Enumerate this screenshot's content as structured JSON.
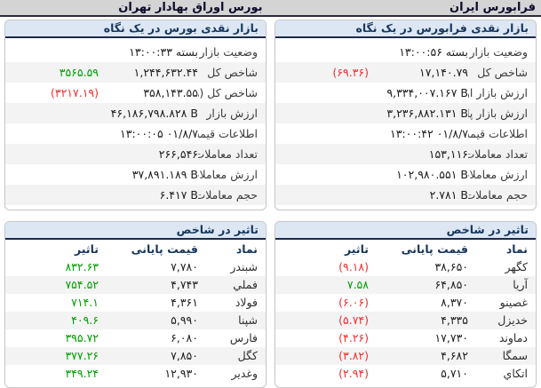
{
  "top_bar": {
    "bourse_title": "بورس اوراق بهادار تهران",
    "farabourse_title": "فرابورس ایران"
  },
  "colors": {
    "positive": "#00a000",
    "negative": "#f03030",
    "section_header_bg": "#dde7f4",
    "section_header_text": "#17365d",
    "topbar_bg": "#d4d4d4",
    "row_stripe": "#f3f3f3"
  },
  "bourse": {
    "glance_title": "بازار نقدی بورس در یک نگاه",
    "glance_rows": [
      {
        "label": "وضعیت بازار",
        "value": "بسته ۱۳:۰۰:۳۳"
      },
      {
        "label": "شاخص کل",
        "value": "۱,۲۴۴,۶۳۲.۴۴",
        "change": "۳۵۶۵.۵۹",
        "change_color": "green"
      },
      {
        "label": "شاخص کل (هم وزن)",
        "value": "۳۵۸,۱۴۳.۵۵",
        "change": "(۳۲۱۷.۱۹)",
        "change_color": "red"
      },
      {
        "label": "ارزش بازار",
        "value": "۴۶,۱۸۶,۷۹۸.۸۲۸ B"
      },
      {
        "label": "اطلاعات قیمت",
        "value": "۱۳:۰۰:۰۵ ۰۱/۸/۷"
      },
      {
        "label": "تعداد معاملات",
        "value": "۲۶۶,۵۴۶"
      },
      {
        "label": "ارزش معاملات",
        "value": "۳۷,۸۹۱.۱۸۹ B"
      },
      {
        "label": "حجم معاملات",
        "value": "۶.۴۱۷ B"
      }
    ],
    "impact_title": "تاثیر در شاخص",
    "table_headers": {
      "symbol": "نماد",
      "price": "قیمت پایانی",
      "impact": "تاثیر"
    },
    "impact_rows": [
      {
        "symbol": "شبندر",
        "price": "۷,۷۸۰",
        "impact": "۸۳۲.۶۳",
        "impact_color": "green"
      },
      {
        "symbol": "فملي",
        "price": "۴,۷۴۳",
        "impact": "۷۵۴.۵۲",
        "impact_color": "green"
      },
      {
        "symbol": "فولاد",
        "price": "۴,۳۶۱",
        "impact": "۷۱۴.۱",
        "impact_color": "green"
      },
      {
        "symbol": "شپنا",
        "price": "۵,۹۹۰",
        "impact": "۴۰۹.۶",
        "impact_color": "green"
      },
      {
        "symbol": "فارس",
        "price": "۶,۰۸۰",
        "impact": "۳۹۵.۷۲",
        "impact_color": "green"
      },
      {
        "symbol": "کگل",
        "price": "۷,۸۵۰",
        "impact": "۳۷۷.۲۶",
        "impact_color": "green"
      },
      {
        "symbol": "وغدیر",
        "price": "۱۲,۹۳۰",
        "impact": "۳۴۹.۲۴",
        "impact_color": "green"
      }
    ]
  },
  "farabourse": {
    "glance_title": "بازار نقدی فرابورس در یک نگاه",
    "glance_rows": [
      {
        "label": "وضعیت بازار",
        "value": "بسته ۱۳:۰۰:۵۶"
      },
      {
        "label": "شاخص کل",
        "value": "۱۷,۱۴۰.۷۹",
        "change": "(۶۹.۳۶)",
        "change_color": "red"
      },
      {
        "label": "ارزش بازار اول و دوم",
        "value": "۹,۳۳۴,۰۰۷.۱۶۷ B"
      },
      {
        "label": "ارزش بازار پایه",
        "value": "۳,۲۳۶,۸۸۲.۱۳۱ B"
      },
      {
        "label": "اطلاعات قیمت",
        "value": "۱۳:۰۰:۴۲ ۰۱/۸/۷"
      },
      {
        "label": "تعداد معاملات",
        "value": "۱۵۳,۱۱۶"
      },
      {
        "label": "ارزش معاملات",
        "value": "۱۰۲,۹۸۰.۵۵۱ B"
      },
      {
        "label": "حجم معاملات",
        "value": "۲.۷۸۱ B"
      }
    ],
    "impact_title": "تاثیر در شاخص",
    "table_headers": {
      "symbol": "نماد",
      "price": "قیمت پایانی",
      "impact": "تاثیر"
    },
    "impact_rows": [
      {
        "symbol": "کگهر",
        "price": "۳۸,۶۵۰",
        "impact": "(۹.۱۸)",
        "impact_color": "red"
      },
      {
        "symbol": "آریا",
        "price": "۶۴,۸۵۰",
        "impact": "۷.۵۸",
        "impact_color": "green"
      },
      {
        "symbol": "غصینو",
        "price": "۸,۳۷۰",
        "impact": "(۶.۰۶)",
        "impact_color": "red"
      },
      {
        "symbol": "خدیزل",
        "price": "۴,۳۳۵",
        "impact": "(۵.۷۴)",
        "impact_color": "red"
      },
      {
        "symbol": "دماوند",
        "price": "۱۷,۷۳۰",
        "impact": "(۴.۲۶)",
        "impact_color": "red"
      },
      {
        "symbol": "سمگا",
        "price": "۴,۶۸۲",
        "impact": "(۳.۸۲)",
        "impact_color": "red"
      },
      {
        "symbol": "اتکاي",
        "price": "۵,۷۱۰",
        "impact": "(۲.۹۴)",
        "impact_color": "red"
      }
    ]
  }
}
